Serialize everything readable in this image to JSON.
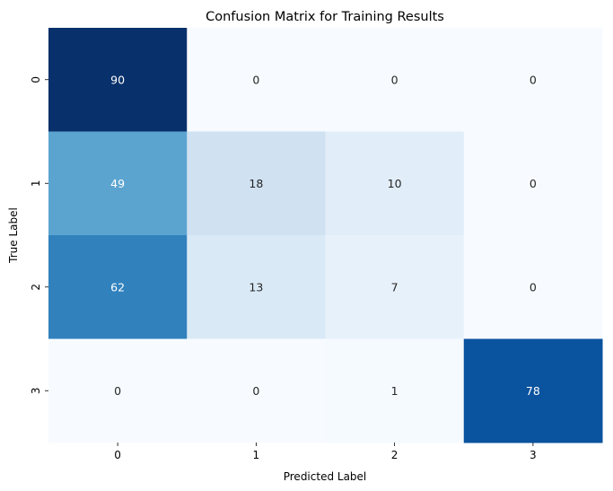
{
  "chart_data": {
    "type": "heatmap",
    "title": "Confusion Matrix for Training Results",
    "xlabel": "Predicted Label",
    "ylabel": "True Label",
    "x_categories": [
      "0",
      "1",
      "2",
      "3"
    ],
    "y_categories": [
      "0",
      "1",
      "2",
      "3"
    ],
    "values": [
      [
        90,
        0,
        0,
        0
      ],
      [
        49,
        18,
        10,
        0
      ],
      [
        62,
        13,
        7,
        0
      ],
      [
        0,
        0,
        1,
        78
      ]
    ],
    "colormap": "Blues",
    "color_range": [
      0,
      90
    ],
    "colorbar": false,
    "grid": false,
    "legend": "none"
  }
}
